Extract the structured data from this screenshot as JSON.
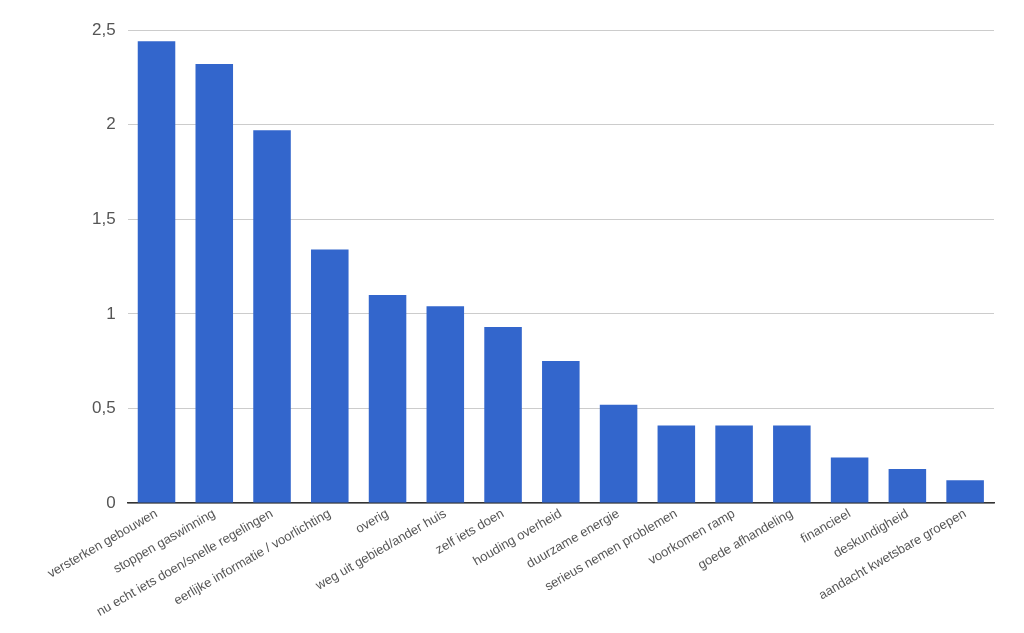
{
  "chart_data": {
    "type": "bar",
    "categories": [
      "versterken gebouwen",
      "stoppen gaswinning",
      "nu echt iets doen/snelle regelingen",
      "eerlijke informatie / voorlichting",
      "overig",
      "weg uit gebied/ander huis",
      "zelf iets doen",
      "houding overheid",
      "duurzame energie",
      "serieus nemen problemen",
      "voorkomen ramp",
      "goede afhandeling",
      "financieel",
      "deskundigheid",
      "aandacht kwetsbare groepen"
    ],
    "values": [
      2.44,
      2.32,
      1.97,
      1.34,
      1.1,
      1.04,
      0.93,
      0.75,
      0.52,
      0.41,
      0.41,
      0.41,
      0.24,
      0.18,
      0.12
    ],
    "color": "#3366cc",
    "ylim": [
      0,
      2.5
    ],
    "yticks": [
      0,
      {
        "value": 0.5,
        "label": "0,5"
      },
      1,
      {
        "value": 1.5,
        "label": "1,5"
      },
      2,
      {
        "value": 2.5,
        "label": "2,5"
      }
    ],
    "grid": true
  }
}
